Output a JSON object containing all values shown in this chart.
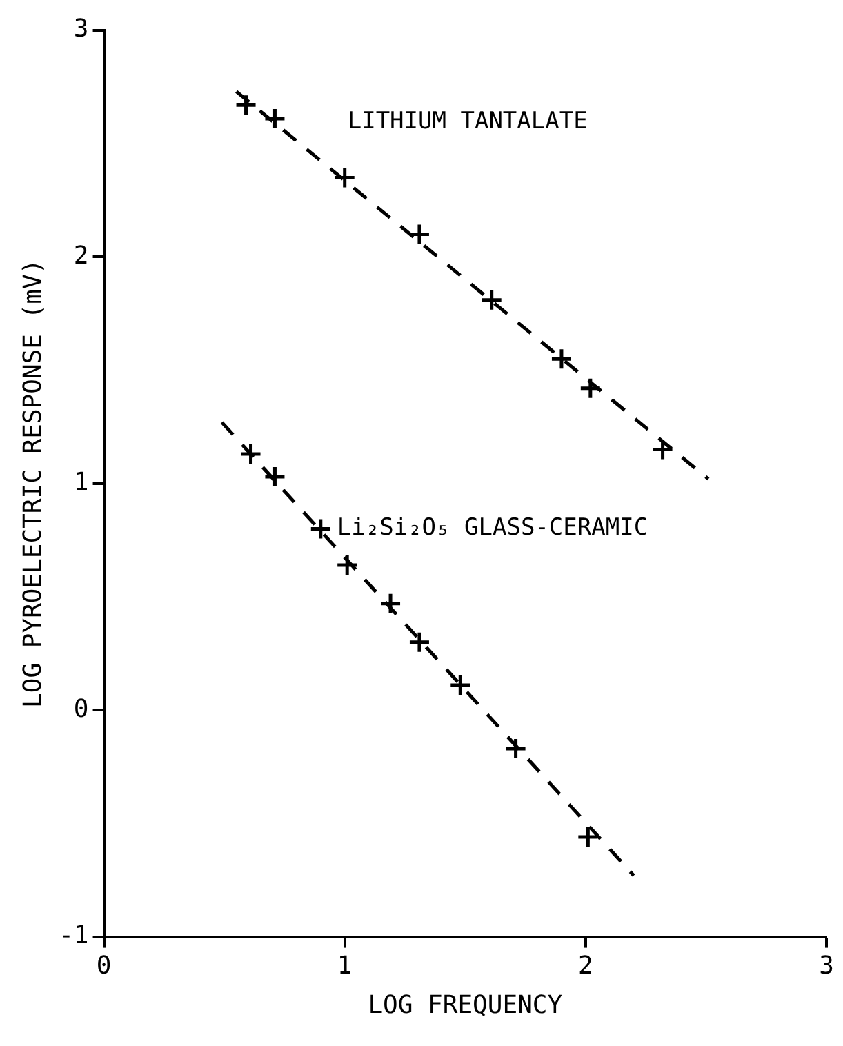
{
  "chart_data": {
    "type": "scatter",
    "xlabel": "LOG FREQUENCY",
    "ylabel": "LOG PYROELECTRIC RESPONSE (mV)",
    "xlim": [
      0,
      3
    ],
    "ylim": [
      -1,
      3
    ],
    "xticks": [
      0,
      1,
      2,
      3
    ],
    "yticks": [
      -1,
      0,
      1,
      2,
      3
    ],
    "grid": false,
    "legend": false,
    "marker": "cross",
    "series": [
      {
        "name": "LITHIUM TANTALATE",
        "color": "#000000",
        "x": [
          0.59,
          0.71,
          1.0,
          1.31,
          1.61,
          1.9,
          2.02,
          2.32
        ],
        "values": [
          2.67,
          2.61,
          2.35,
          2.1,
          1.81,
          1.55,
          1.42,
          1.15
        ]
      },
      {
        "name": "Li₂Si₂O₅ GLASS-CERAMIC",
        "color": "#000000",
        "x": [
          0.61,
          0.71,
          0.9,
          1.01,
          1.19,
          1.31,
          1.48,
          1.71,
          2.01
        ],
        "values": [
          1.13,
          1.03,
          0.8,
          0.64,
          0.47,
          0.3,
          0.11,
          -0.17,
          -0.56
        ]
      },
      {
        "type": "line",
        "line_style": "dashed",
        "marker": "none",
        "color": "#000000",
        "x": [
          0.55,
          2.51
        ],
        "values": [
          2.73,
          1.02
        ]
      },
      {
        "type": "line",
        "line_style": "dashed",
        "marker": "none",
        "color": "#000000",
        "x": [
          0.49,
          2.2
        ],
        "values": [
          1.27,
          -0.73
        ]
      }
    ]
  }
}
